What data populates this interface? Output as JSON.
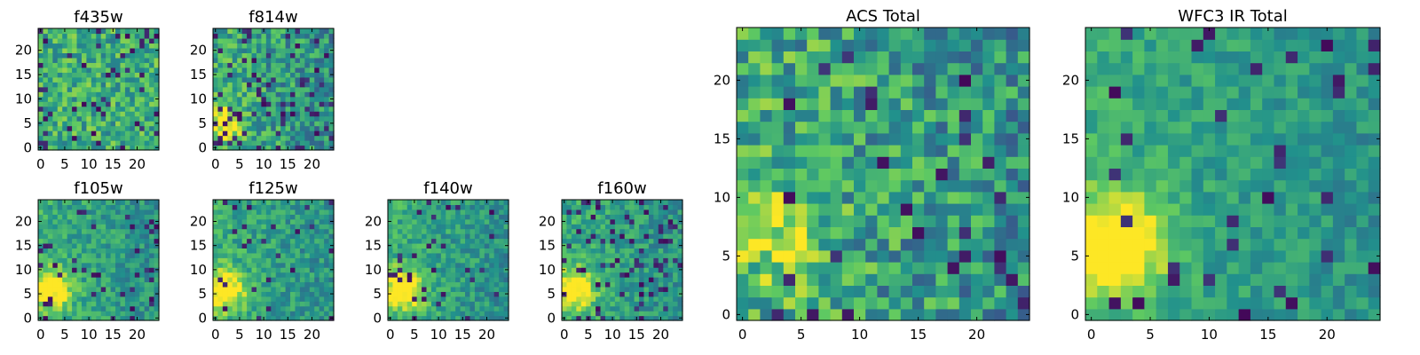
{
  "chart_data": [
    {
      "type": "heatmap",
      "title": "f435w",
      "xticks": [
        0,
        5,
        10,
        15,
        20
      ],
      "yticks": [
        0,
        5,
        10,
        15,
        20
      ],
      "xlim": [
        0,
        24
      ],
      "ylim": [
        0,
        24
      ],
      "grid": false,
      "colormap": "viridis",
      "hotspot": null,
      "seed": 11,
      "noise": 0.22,
      "dark_frac": 0.08
    },
    {
      "type": "heatmap",
      "title": "f814w",
      "xticks": [
        0,
        5,
        10,
        15,
        20
      ],
      "yticks": [
        0,
        5,
        10,
        15,
        20
      ],
      "xlim": [
        0,
        24
      ],
      "ylim": [
        0,
        24
      ],
      "grid": false,
      "colormap": "viridis",
      "hotspot": {
        "x": 2,
        "y": 5,
        "strength": 0.45
      },
      "seed": 23,
      "noise": 0.22,
      "dark_frac": 0.12
    },
    {
      "type": "heatmap",
      "title": "f105w",
      "xticks": [
        0,
        5,
        10,
        15,
        20
      ],
      "yticks": [
        0,
        5,
        10,
        15,
        20
      ],
      "xlim": [
        0,
        24
      ],
      "ylim": [
        0,
        24
      ],
      "grid": false,
      "colormap": "viridis",
      "hotspot": {
        "x": 2,
        "y": 6,
        "strength": 0.55
      },
      "seed": 37,
      "noise": 0.15,
      "dark_frac": 0.06
    },
    {
      "type": "heatmap",
      "title": "f125w",
      "xticks": [
        0,
        5,
        10,
        15,
        20
      ],
      "yticks": [
        0,
        5,
        10,
        15,
        20
      ],
      "xlim": [
        0,
        24
      ],
      "ylim": [
        0,
        24
      ],
      "grid": false,
      "colormap": "viridis",
      "hotspot": {
        "x": 2,
        "y": 6,
        "strength": 0.55
      },
      "seed": 41,
      "noise": 0.15,
      "dark_frac": 0.06
    },
    {
      "type": "heatmap",
      "title": "f140w",
      "xticks": [
        0,
        5,
        10,
        15,
        20
      ],
      "yticks": [
        0,
        5,
        10,
        15,
        20
      ],
      "xlim": [
        0,
        24
      ],
      "ylim": [
        0,
        24
      ],
      "grid": false,
      "colormap": "viridis",
      "hotspot": {
        "x": 3,
        "y": 6,
        "strength": 0.55
      },
      "seed": 53,
      "noise": 0.15,
      "dark_frac": 0.07
    },
    {
      "type": "heatmap",
      "title": "f160w",
      "xticks": [
        0,
        5,
        10,
        15,
        20
      ],
      "yticks": [
        0,
        5,
        10,
        15,
        20
      ],
      "xlim": [
        0,
        24
      ],
      "ylim": [
        0,
        24
      ],
      "grid": false,
      "colormap": "viridis",
      "hotspot": {
        "x": 2,
        "y": 6,
        "strength": 0.55
      },
      "seed": 67,
      "noise": 0.15,
      "dark_frac": 0.09
    },
    {
      "type": "heatmap",
      "title": "ACS Total",
      "xticks": [
        0,
        5,
        10,
        15,
        20
      ],
      "yticks": [
        0,
        5,
        10,
        15,
        20
      ],
      "xlim": [
        0,
        24
      ],
      "ylim": [
        0,
        24
      ],
      "grid": false,
      "colormap": "viridis",
      "hotspot": {
        "x": 3,
        "y": 7,
        "strength": 0.3
      },
      "seed": 79,
      "noise": 0.25,
      "dark_frac": 0.05
    },
    {
      "type": "heatmap",
      "title": "WFC3 IR Total",
      "xticks": [
        0,
        5,
        10,
        15,
        20
      ],
      "yticks": [
        0,
        5,
        10,
        15,
        20
      ],
      "xlim": [
        0,
        24
      ],
      "ylim": [
        0,
        24
      ],
      "grid": false,
      "colormap": "viridis",
      "hotspot": {
        "x": 2,
        "y": 6,
        "strength": 0.6
      },
      "seed": 97,
      "noise": 0.12,
      "dark_frac": 0.05
    }
  ]
}
